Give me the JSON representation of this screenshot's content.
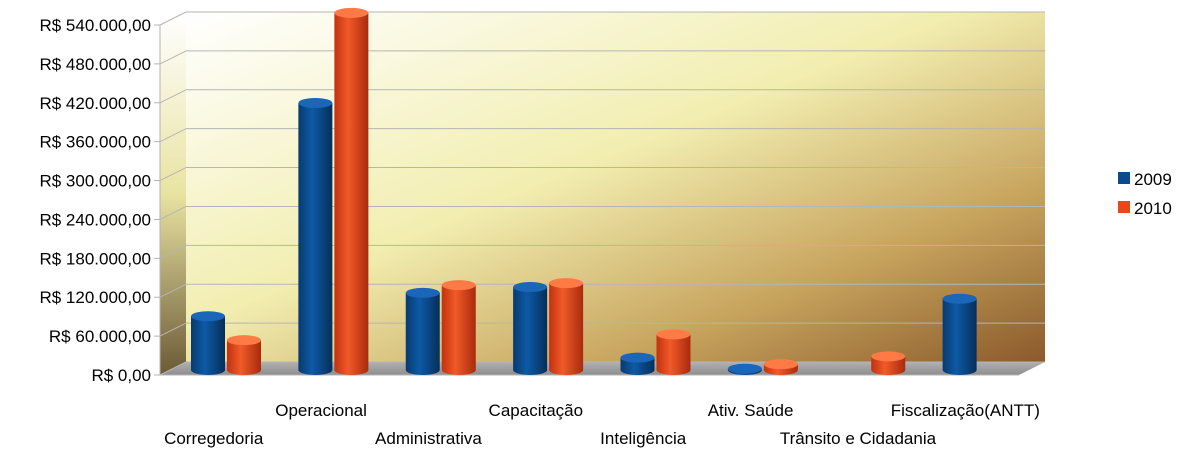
{
  "chart_data": {
    "type": "bar",
    "title": "",
    "xlabel": "",
    "ylabel": "",
    "categories": [
      "Corregedoria",
      "Operacional",
      "Administrativa",
      "Capacitação",
      "Inteligência",
      "Ativ. Saúde",
      "Trânsito e Cidadania",
      "Fiscalização(ANTT)"
    ],
    "series": [
      {
        "name": "2009",
        "color": "#0b4a8b",
        "values": [
          83000,
          412000,
          119000,
          128000,
          19000,
          2000,
          null,
          110000
        ]
      },
      {
        "name": "2010",
        "color": "#e8471b",
        "values": [
          46000,
          551000,
          131000,
          134000,
          55000,
          9000,
          21000,
          null
        ]
      }
    ],
    "ylim": [
      0,
      540000
    ],
    "yticks": [
      0,
      60000,
      120000,
      180000,
      240000,
      300000,
      360000,
      420000,
      480000,
      540000
    ],
    "ytick_labels": [
      "R$ 0,00",
      "R$ 60.000,00",
      "R$ 120.000,00",
      "R$ 180.000,00",
      "R$ 240.000,00",
      "R$ 300.000,00",
      "R$ 360.000,00",
      "R$ 420.000,00",
      "R$ 480.000,00",
      "R$ 540.000,00"
    ],
    "grid": true,
    "legend_position": "right",
    "three_d": true
  }
}
